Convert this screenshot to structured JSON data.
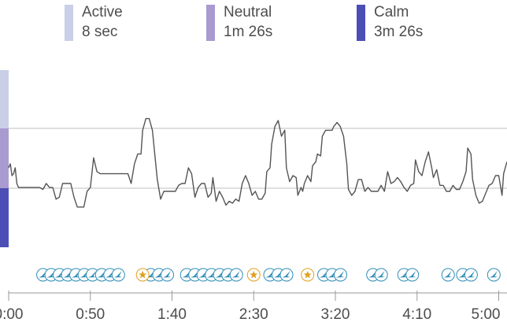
{
  "legend": {
    "items": [
      {
        "label": "Active",
        "value": "8 sec",
        "color": "#c9cfe6"
      },
      {
        "label": "Neutral",
        "value": "1m 26s",
        "color": "#a99ad0"
      },
      {
        "label": "Calm",
        "value": "3m 26s",
        "color": "#4c4eb5"
      }
    ]
  },
  "chart_data": {
    "type": "line",
    "xlabel": "",
    "ylabel": "",
    "x_range": [
      0,
      305
    ],
    "y_range": [
      0,
      1
    ],
    "tick_labels": [
      "0:00",
      "0:50",
      "1:40",
      "2:30",
      "3:20",
      "4:10",
      "5:00"
    ],
    "tick_values": [
      0,
      50,
      100,
      150,
      200,
      250,
      300
    ],
    "thresholds": [
      0.4914,
      0.8314
    ],
    "line_color": "#555555",
    "grid_color": "#bfbfbf",
    "zone_colors": {
      "active": "#c9cfe6",
      "neutral": "#a99ad0",
      "calm": "#4c4eb5"
    },
    "series": [
      {
        "values": [
          [
            0,
            0.514
          ],
          [
            1,
            0.543
          ],
          [
            2,
            0.457
          ],
          [
            3,
            0.471
          ],
          [
            4,
            0.514
          ],
          [
            5,
            0.4
          ],
          [
            6,
            0.371
          ],
          [
            8,
            0.371
          ],
          [
            11,
            0.371
          ],
          [
            14,
            0.371
          ],
          [
            17,
            0.371
          ],
          [
            19,
            0.371
          ],
          [
            21,
            0.357
          ],
          [
            23,
            0.4
          ],
          [
            25,
            0.371
          ],
          [
            27,
            0.371
          ],
          [
            29,
            0.286
          ],
          [
            31,
            0.3
          ],
          [
            33,
            0.4
          ],
          [
            36,
            0.4
          ],
          [
            38,
            0.4
          ],
          [
            40,
            0.3
          ],
          [
            42,
            0.229
          ],
          [
            44,
            0.229
          ],
          [
            46,
            0.229
          ],
          [
            48,
            0.343
          ],
          [
            50,
            0.371
          ],
          [
            52,
            0.586
          ],
          [
            54,
            0.486
          ],
          [
            56,
            0.471
          ],
          [
            59,
            0.471
          ],
          [
            62,
            0.471
          ],
          [
            65,
            0.471
          ],
          [
            68,
            0.471
          ],
          [
            71,
            0.471
          ],
          [
            73,
            0.471
          ],
          [
            75,
            0.4
          ],
          [
            77,
            0.543
          ],
          [
            79,
            0.614
          ],
          [
            81,
            0.614
          ],
          [
            82,
            0.786
          ],
          [
            84,
            0.871
          ],
          [
            86,
            0.871
          ],
          [
            88,
            0.786
          ],
          [
            90,
            0.543
          ],
          [
            91,
            0.429
          ],
          [
            93,
            0.286
          ],
          [
            95,
            0.343
          ],
          [
            97,
            0.343
          ],
          [
            100,
            0.343
          ],
          [
            102,
            0.343
          ],
          [
            104,
            0.386
          ],
          [
            106,
            0.4
          ],
          [
            108,
            0.4
          ],
          [
            110,
            0.514
          ],
          [
            112,
            0.471
          ],
          [
            114,
            0.3
          ],
          [
            116,
            0.371
          ],
          [
            118,
            0.4
          ],
          [
            120,
            0.4
          ],
          [
            122,
            0.3
          ],
          [
            124,
            0.329
          ],
          [
            125,
            0.443
          ],
          [
            127,
            0.271
          ],
          [
            129,
            0.343
          ],
          [
            131,
            0.3
          ],
          [
            133,
            0.243
          ],
          [
            135,
            0.271
          ],
          [
            137,
            0.257
          ],
          [
            139,
            0.286
          ],
          [
            141,
            0.271
          ],
          [
            143,
            0.4
          ],
          [
            145,
            0.457
          ],
          [
            147,
            0.4
          ],
          [
            149,
            0.314
          ],
          [
            151,
            0.343
          ],
          [
            153,
            0.286
          ],
          [
            155,
            0.286
          ],
          [
            157,
            0.329
          ],
          [
            158,
            0.486
          ],
          [
            160,
            0.514
          ],
          [
            161,
            0.686
          ],
          [
            163,
            0.814
          ],
          [
            165,
            0.857
          ],
          [
            167,
            0.743
          ],
          [
            169,
            0.786
          ],
          [
            170,
            0.514
          ],
          [
            172,
            0.414
          ],
          [
            174,
            0.457
          ],
          [
            176,
            0.443
          ],
          [
            177,
            0.314
          ],
          [
            179,
            0.371
          ],
          [
            180,
            0.343
          ],
          [
            181,
            0.4
          ],
          [
            183,
            0.457
          ],
          [
            185,
            0.414
          ],
          [
            186,
            0.529
          ],
          [
            188,
            0.557
          ],
          [
            189,
            0.614
          ],
          [
            191,
            0.6
          ],
          [
            192,
            0.743
          ],
          [
            194,
            0.786
          ],
          [
            196,
            0.786
          ],
          [
            198,
            0.786
          ],
          [
            199,
            0.814
          ],
          [
            201,
            0.843
          ],
          [
            203,
            0.814
          ],
          [
            205,
            0.743
          ],
          [
            207,
            0.543
          ],
          [
            208,
            0.357
          ],
          [
            210,
            0.314
          ],
          [
            212,
            0.343
          ],
          [
            214,
            0.429
          ],
          [
            216,
            0.429
          ],
          [
            218,
            0.343
          ],
          [
            220,
            0.371
          ],
          [
            222,
            0.343
          ],
          [
            224,
            0.343
          ],
          [
            226,
            0.343
          ],
          [
            228,
            0.386
          ],
          [
            230,
            0.343
          ],
          [
            232,
            0.486
          ],
          [
            234,
            0.4
          ],
          [
            236,
            0.414
          ],
          [
            238,
            0.443
          ],
          [
            240,
            0.414
          ],
          [
            242,
            0.371
          ],
          [
            244,
            0.343
          ],
          [
            246,
            0.386
          ],
          [
            248,
            0.4
          ],
          [
            249,
            0.571
          ],
          [
            251,
            0.486
          ],
          [
            253,
            0.457
          ],
          [
            255,
            0.557
          ],
          [
            257,
            0.629
          ],
          [
            259,
            0.514
          ],
          [
            260,
            0.443
          ],
          [
            262,
            0.5
          ],
          [
            264,
            0.386
          ],
          [
            266,
            0.386
          ],
          [
            268,
            0.343
          ],
          [
            270,
            0.343
          ],
          [
            272,
            0.386
          ],
          [
            274,
            0.357
          ],
          [
            276,
            0.357
          ],
          [
            278,
            0.414
          ],
          [
            280,
            0.486
          ],
          [
            281,
            0.657
          ],
          [
            283,
            0.614
          ],
          [
            284,
            0.429
          ],
          [
            286,
            0.314
          ],
          [
            288,
            0.257
          ],
          [
            290,
            0.271
          ],
          [
            292,
            0.329
          ],
          [
            294,
            0.386
          ],
          [
            296,
            0.4
          ],
          [
            298,
            0.457
          ],
          [
            300,
            0.457
          ],
          [
            302,
            0.314
          ],
          [
            303,
            0.471
          ],
          [
            304,
            0.514
          ],
          [
            305,
            0.557
          ]
        ]
      }
    ],
    "markers": {
      "bird_groups": [
        {
          "start": 21,
          "count": 7
        },
        {
          "start": 57,
          "count": 3
        },
        {
          "start": 87,
          "count": 3
        },
        {
          "start": 109,
          "count": 7
        },
        {
          "start": 160,
          "count": 3
        },
        {
          "start": 193,
          "count": 3
        },
        {
          "start": 223,
          "count": 2
        },
        {
          "start": 242,
          "count": 2
        },
        {
          "start": 269,
          "count": 1
        },
        {
          "start": 278,
          "count": 2
        },
        {
          "start": 297,
          "count": 1
        }
      ],
      "star_times": [
        82,
        150,
        183
      ],
      "bird_color": "#2e8cb5",
      "star_color": "#e0a020"
    }
  }
}
